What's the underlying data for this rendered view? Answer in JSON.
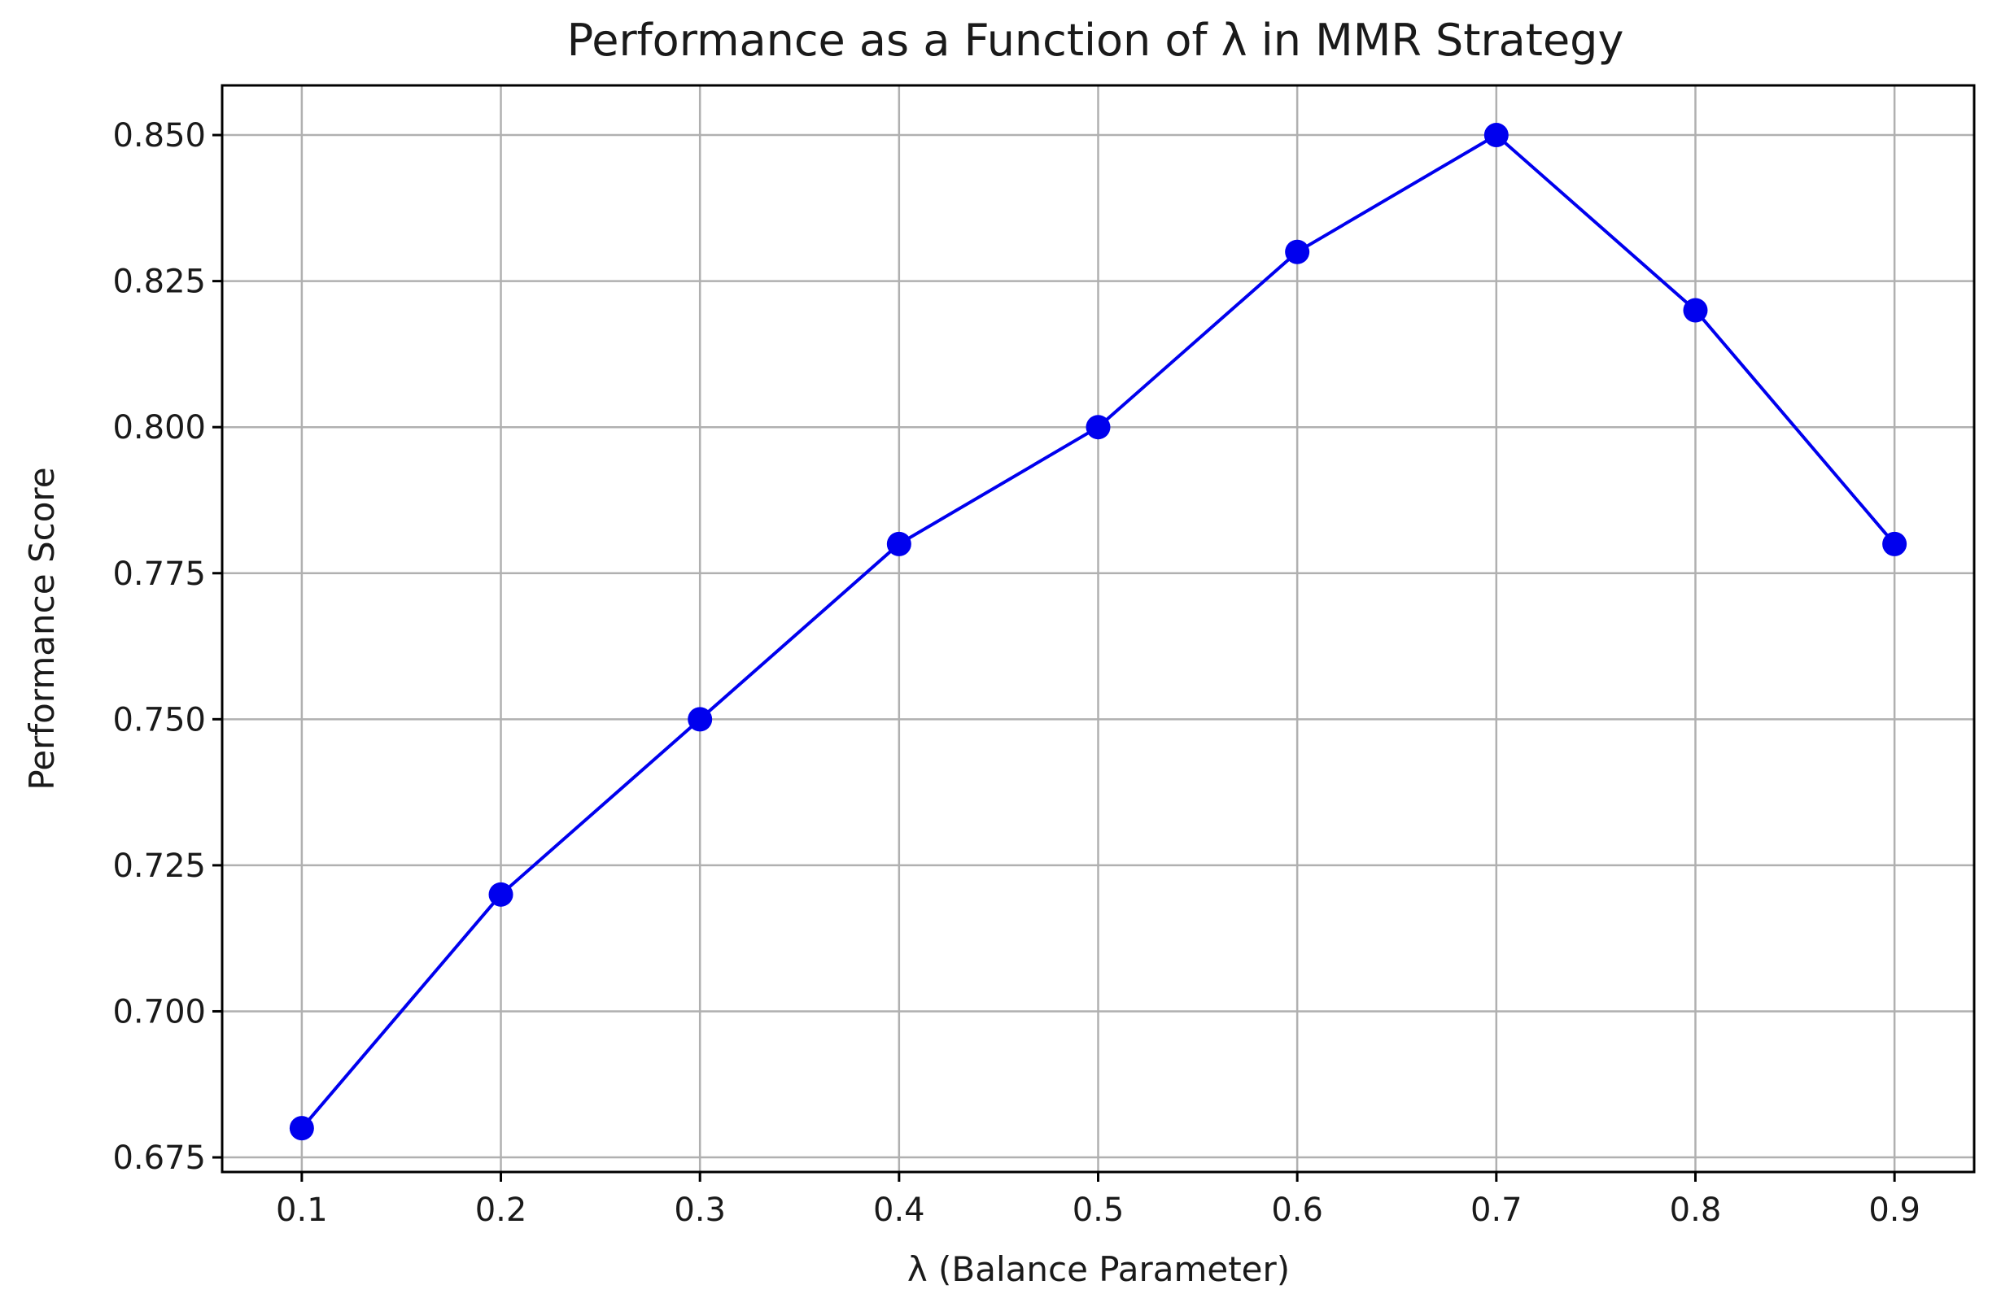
{
  "chart_data": {
    "type": "line",
    "title": "Performance as a Function of λ in MMR Strategy",
    "xlabel": "λ (Balance Parameter)",
    "ylabel": "Performance Score",
    "x": [
      0.1,
      0.2,
      0.3,
      0.4,
      0.5,
      0.6,
      0.7,
      0.8,
      0.9
    ],
    "series": [
      {
        "values": [
          0.68,
          0.72,
          0.75,
          0.78,
          0.8,
          0.83,
          0.85,
          0.82,
          0.78
        ],
        "color": "#0000ee",
        "marker": "circle"
      }
    ],
    "xticks": [
      "0.1",
      "0.2",
      "0.3",
      "0.4",
      "0.5",
      "0.6",
      "0.7",
      "0.8",
      "0.9"
    ],
    "yticks": [
      "0.675",
      "0.700",
      "0.725",
      "0.750",
      "0.775",
      "0.800",
      "0.825",
      "0.850"
    ],
    "ytick_values": [
      0.675,
      0.7,
      0.725,
      0.75,
      0.775,
      0.8,
      0.825,
      0.85
    ],
    "xlim": [
      0.06,
      0.94
    ],
    "ylim": [
      0.6725,
      0.8585
    ],
    "grid": true,
    "legend": "none"
  }
}
